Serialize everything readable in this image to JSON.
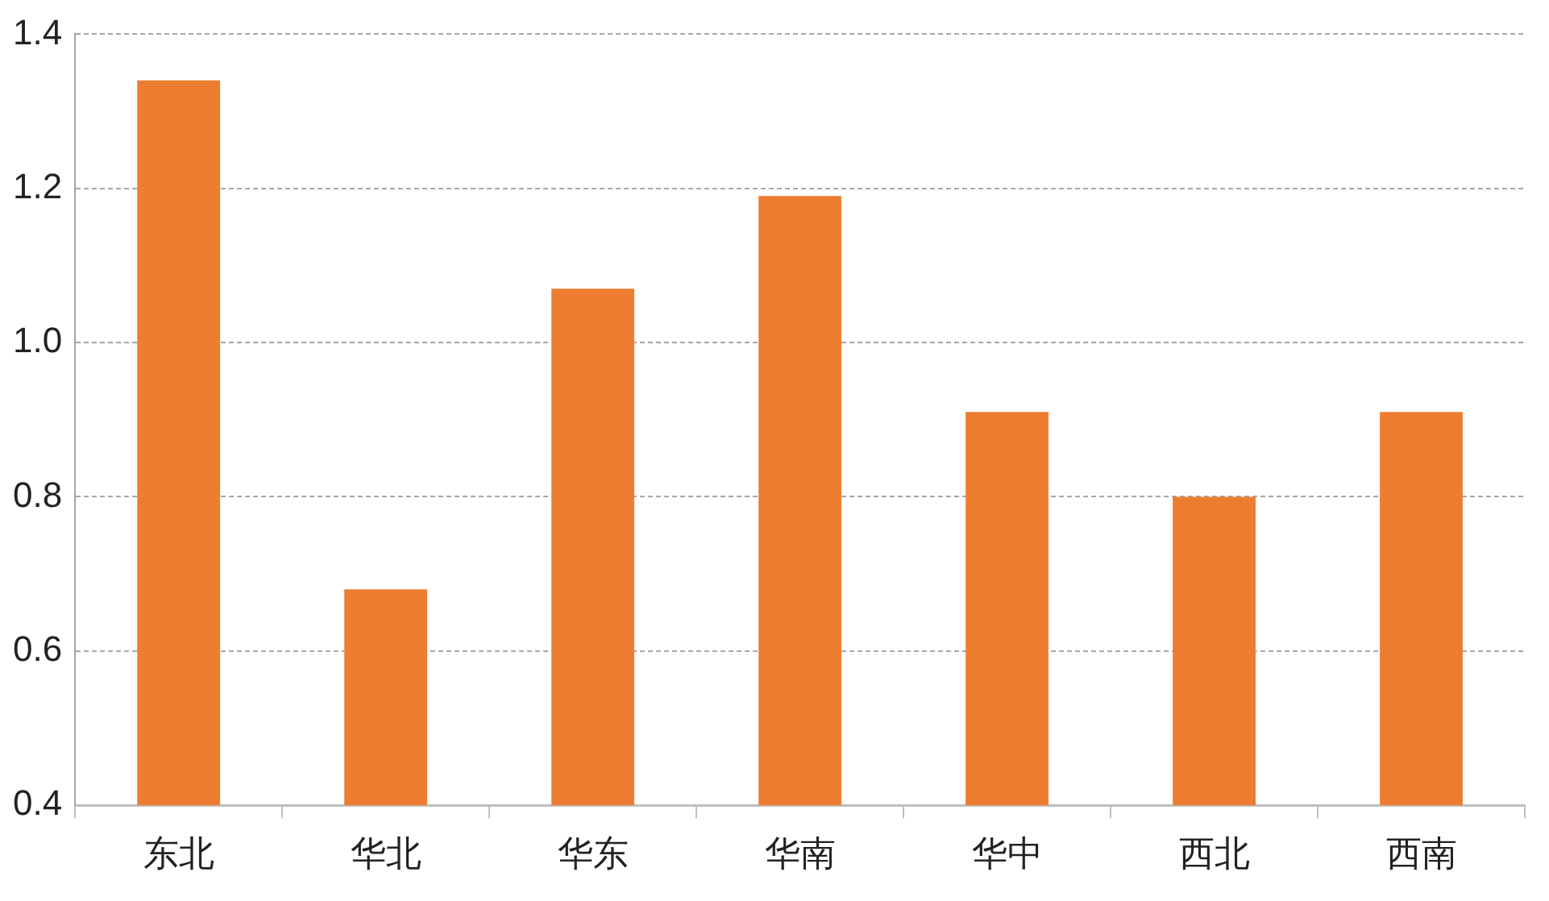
{
  "chart_data": {
    "type": "bar",
    "categories": [
      "东北",
      "华北",
      "华东",
      "华南",
      "华中",
      "西北",
      "西南"
    ],
    "values": [
      1.34,
      0.68,
      1.07,
      1.19,
      0.91,
      0.8,
      0.91
    ],
    "color": "#ed7d31",
    "ylim": [
      0.4,
      1.4
    ],
    "yticks": [
      {
        "value": 0.4,
        "label": "0.4"
      },
      {
        "value": 0.6,
        "label": "0.6"
      },
      {
        "value": 0.8,
        "label": "0.8"
      },
      {
        "value": 1.0,
        "label": "1.0"
      },
      {
        "value": 1.2,
        "label": "1.2"
      },
      {
        "value": 1.4,
        "label": "1.4"
      }
    ],
    "grid": "y",
    "legend": false
  }
}
